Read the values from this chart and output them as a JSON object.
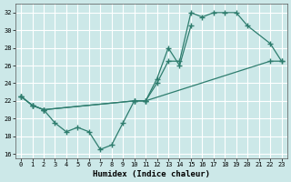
{
  "xlabel": "Humidex (Indice chaleur)",
  "bg_color": "#cce8e8",
  "grid_color": "#ffffff",
  "line_color": "#2e7d6e",
  "xlim": [
    -0.5,
    23.5
  ],
  "ylim": [
    15.5,
    33.0
  ],
  "yticks": [
    16,
    18,
    20,
    22,
    24,
    26,
    28,
    30,
    32
  ],
  "xticks": [
    0,
    1,
    2,
    3,
    4,
    5,
    6,
    7,
    8,
    9,
    10,
    11,
    12,
    13,
    14,
    15,
    16,
    17,
    18,
    19,
    20,
    21,
    22,
    23
  ],
  "series1_x": [
    0,
    1,
    2,
    3,
    4,
    5,
    6,
    7,
    8,
    9,
    10,
    11,
    12,
    13,
    14,
    15
  ],
  "series1_y": [
    22.5,
    21.5,
    21.0,
    19.5,
    18.5,
    19.0,
    18.5,
    16.5,
    17.0,
    19.5,
    22.0,
    22.0,
    24.5,
    28.0,
    26.0,
    30.5
  ],
  "series2_x": [
    0,
    1,
    2,
    10,
    11,
    12,
    13,
    14,
    15,
    16,
    17,
    18,
    19,
    20,
    22,
    23
  ],
  "series2_y": [
    22.5,
    21.5,
    21.0,
    22.0,
    22.0,
    24.0,
    26.5,
    26.5,
    32.0,
    31.5,
    32.0,
    32.0,
    32.0,
    30.5,
    28.5,
    26.5
  ],
  "series3_x": [
    0,
    1,
    2,
    10,
    11,
    22,
    23
  ],
  "series3_y": [
    22.5,
    21.5,
    21.0,
    22.0,
    22.0,
    26.5,
    26.5
  ]
}
